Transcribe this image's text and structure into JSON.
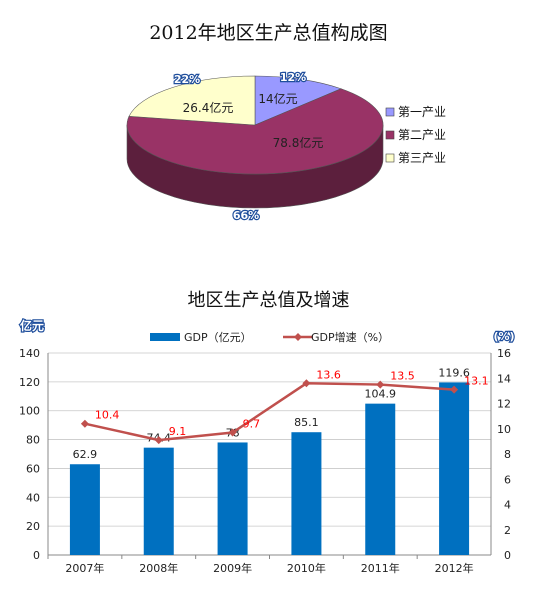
{
  "chart_data": [
    {
      "type": "pie",
      "title": "2012年地区生产总值构成图",
      "labels": [
        "第一产业",
        "第二产业",
        "第三产业"
      ],
      "values": [
        14,
        78.8,
        26.4
      ],
      "value_labels": [
        "14亿元",
        "78.8亿元",
        "26.4亿元"
      ],
      "percent_labels": [
        "12%",
        "66%",
        "22%"
      ],
      "colors": [
        "#9999ff",
        "#993366",
        "#ffffcc"
      ],
      "legend_position": "right"
    },
    {
      "type": "bar",
      "title": "地区生产总值及增速",
      "categories": [
        "2007年",
        "2008年",
        "2009年",
        "2010年",
        "2011年",
        "2012年"
      ],
      "series": [
        {
          "name": "GDP（亿元）",
          "type": "bar",
          "axis": "left",
          "values": [
            62.9,
            74.4,
            78,
            85.1,
            104.9,
            119.6
          ],
          "value_labels": [
            "62.9",
            "74.4",
            "78",
            "85.1",
            "104.9",
            "119.6"
          ],
          "color": "#0070c0"
        },
        {
          "name": "GDP增速（%）",
          "type": "line",
          "axis": "right",
          "values": [
            10.4,
            9.1,
            9.7,
            13.6,
            13.5,
            13.1
          ],
          "value_labels": [
            "10.4",
            "9.1",
            "9.7",
            "13.6",
            "13.5",
            "13.1"
          ],
          "color": "#c0504d",
          "label_color": "#ff0000"
        }
      ],
      "ylabel": "亿元",
      "y2label": "(%)",
      "ylim": [
        0,
        140
      ],
      "yticks": [
        "0",
        "20",
        "40",
        "60",
        "80",
        "100",
        "120",
        "140"
      ],
      "y2lim": [
        0,
        16
      ],
      "y2ticks": [
        "0",
        "2",
        "4",
        "6",
        "8",
        "10",
        "12",
        "14",
        "16"
      ],
      "grid": true,
      "legend_position": "top"
    }
  ]
}
